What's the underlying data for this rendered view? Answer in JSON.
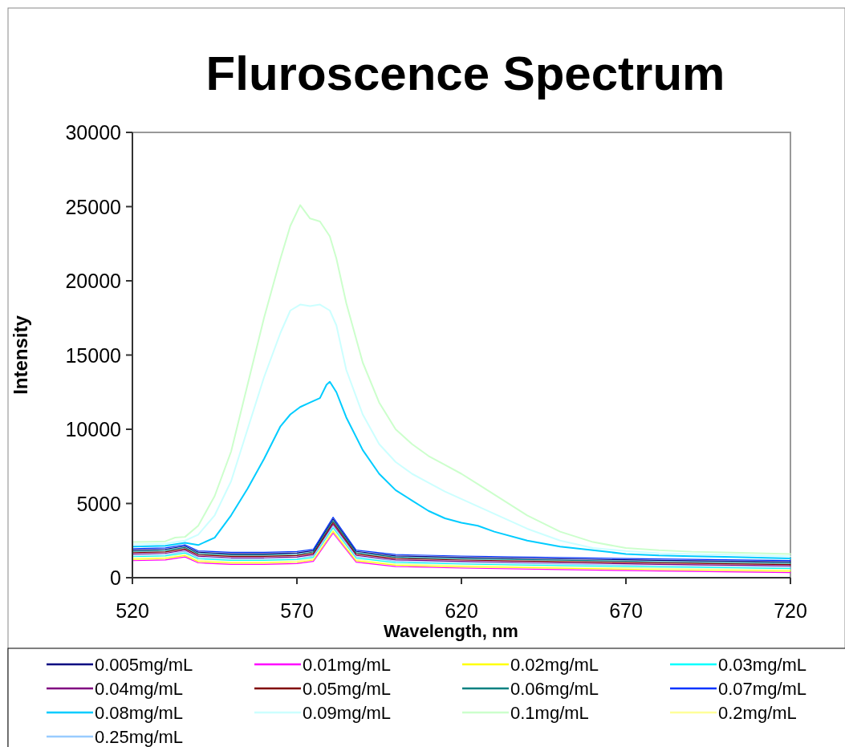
{
  "chart_data": {
    "type": "line",
    "title": "Fluroscence Spectrum",
    "xlabel": "Wavelength, nm",
    "ylabel": "Intensity",
    "xlim": [
      520,
      720
    ],
    "xticks": [
      520,
      570,
      620,
      670,
      720
    ],
    "ylim": [
      0,
      30000
    ],
    "yticks": [
      0,
      5000,
      10000,
      15000,
      20000,
      25000,
      30000
    ],
    "grid": false,
    "legend": "bottom",
    "marker": "none",
    "line_style": "solid",
    "x": [
      520,
      530,
      536,
      540,
      550,
      560,
      570,
      575,
      581,
      588,
      600,
      620,
      650,
      680,
      720
    ],
    "series": [
      {
        "name": "0.005mg/mL",
        "color": "#000080",
        "values": [
          1870,
          1920,
          2120,
          1720,
          1620,
          1620,
          1670,
          1820,
          3960,
          1770,
          1470,
          1370,
          1270,
          1170,
          1070
        ]
      },
      {
        "name": "0.01mg/mL",
        "color": "#ff00ff",
        "values": [
          1150,
          1200,
          1400,
          1000,
          900,
          900,
          950,
          1100,
          3000,
          1050,
          750,
          650,
          550,
          450,
          350
        ]
      },
      {
        "name": "0.02mg/mL",
        "color": "#ffff00",
        "values": [
          1240,
          1290,
          1490,
          1090,
          990,
          990,
          1040,
          1190,
          3120,
          1140,
          840,
          740,
          640,
          540,
          440
        ]
      },
      {
        "name": "0.03mg/mL",
        "color": "#00ffff",
        "values": [
          1420,
          1470,
          1670,
          1270,
          1170,
          1170,
          1220,
          1370,
          3360,
          1320,
          1020,
          920,
          820,
          720,
          620
        ]
      },
      {
        "name": "0.04mg/mL",
        "color": "#800080",
        "values": [
          1600,
          1650,
          1850,
          1450,
          1350,
          1350,
          1400,
          1550,
          3600,
          1500,
          1200,
          1100,
          1000,
          900,
          800
        ]
      },
      {
        "name": "0.05mg/mL",
        "color": "#800000",
        "values": [
          1690,
          1740,
          1940,
          1540,
          1440,
          1440,
          1490,
          1640,
          3720,
          1590,
          1290,
          1190,
          1090,
          990,
          890
        ]
      },
      {
        "name": "0.06mg/mL",
        "color": "#008080",
        "values": [
          1780,
          1830,
          2030,
          1630,
          1530,
          1530,
          1580,
          1730,
          3840,
          1680,
          1380,
          1280,
          1180,
          1080,
          980
        ]
      },
      {
        "name": "0.07mg/mL",
        "color": "#0033ff",
        "values": [
          1960,
          2010,
          2210,
          1810,
          1710,
          1710,
          1760,
          1910,
          4080,
          1860,
          1560,
          1460,
          1360,
          1260,
          1160
        ]
      },
      {
        "name": "0.08mg/mL",
        "color": "#00ccff",
        "x": [
          520,
          530,
          536,
          540,
          545,
          550,
          555,
          560,
          565,
          568,
          571,
          574,
          577,
          579,
          580,
          582,
          585,
          590,
          595,
          600,
          605,
          610,
          615,
          620,
          625,
          630,
          640,
          650,
          660,
          670,
          680,
          690,
          700,
          710,
          720
        ],
        "values": [
          2100,
          2150,
          2350,
          2200,
          2700,
          4200,
          6000,
          8000,
          10200,
          11000,
          11500,
          11800,
          12100,
          13000,
          13200,
          12500,
          10800,
          8600,
          7000,
          5900,
          5200,
          4500,
          4000,
          3700,
          3500,
          3100,
          2500,
          2100,
          1850,
          1600,
          1500,
          1450,
          1400,
          1350,
          1300
        ]
      },
      {
        "name": "0.09mg/mL",
        "color": "#ccffff",
        "x": [
          520,
          530,
          536,
          540,
          545,
          550,
          555,
          560,
          565,
          568,
          571,
          574,
          577,
          580,
          582,
          585,
          590,
          595,
          600,
          605,
          610,
          615,
          620,
          625,
          630,
          640,
          650,
          660,
          670,
          680,
          690,
          700,
          710,
          720
        ],
        "values": [
          2250,
          2300,
          2500,
          2900,
          4200,
          6500,
          10000,
          13500,
          16500,
          18000,
          18400,
          18300,
          18400,
          18000,
          17000,
          14000,
          11000,
          9000,
          7800,
          7000,
          6400,
          5800,
          5300,
          4800,
          4300,
          3300,
          2500,
          2000,
          1800,
          1650,
          1600,
          1550,
          1500,
          1450
        ]
      },
      {
        "name": "0.1mg/mL",
        "color": "#ccffcc",
        "x": [
          520,
          525,
          530,
          533,
          536,
          540,
          545,
          550,
          555,
          560,
          565,
          568,
          571,
          574,
          577,
          580,
          582,
          585,
          590,
          595,
          600,
          605,
          610,
          615,
          620,
          625,
          630,
          640,
          650,
          660,
          670,
          680,
          690,
          700,
          710,
          720
        ],
        "values": [
          2400,
          2420,
          2450,
          2700,
          2750,
          3500,
          5500,
          8500,
          13000,
          17500,
          21500,
          23700,
          25100,
          24200,
          24000,
          23000,
          21500,
          18500,
          14500,
          11800,
          10000,
          9000,
          8200,
          7600,
          7000,
          6300,
          5600,
          4200,
          3100,
          2400,
          2000,
          1850,
          1750,
          1700,
          1650,
          1600
        ]
      },
      {
        "name": "0.2mg/mL",
        "color": "#ffff99",
        "values": [
          1330,
          1380,
          1580,
          1180,
          1080,
          1080,
          1130,
          1280,
          3240,
          1230,
          930,
          830,
          730,
          630,
          530
        ]
      },
      {
        "name": "0.25mg/mL",
        "color": "#99ccff",
        "values": [
          1510,
          1560,
          1760,
          1360,
          1260,
          1260,
          1310,
          1460,
          3480,
          1410,
          1110,
          1010,
          910,
          810,
          710
        ]
      }
    ]
  }
}
